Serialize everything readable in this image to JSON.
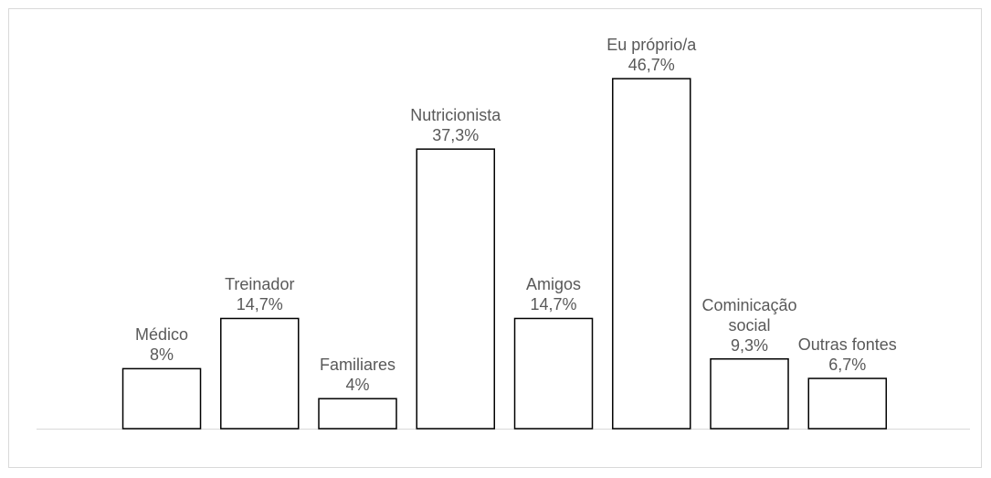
{
  "chart_data": {
    "type": "bar",
    "categories": [
      "Médico",
      "Treinador",
      "Familiares",
      "Nutricionista",
      "Amigos",
      "Eu próprio/a",
      "Cominicação social",
      "Outras fontes"
    ],
    "values": [
      8,
      14.7,
      4,
      37.3,
      14.7,
      46.7,
      9.3,
      6.7
    ],
    "value_labels": [
      "8%",
      "14,7%",
      "4%",
      "37,3%",
      "14,7%",
      "46,7%",
      "9,3%",
      "6,7%"
    ],
    "color": "#ffffff"
  }
}
